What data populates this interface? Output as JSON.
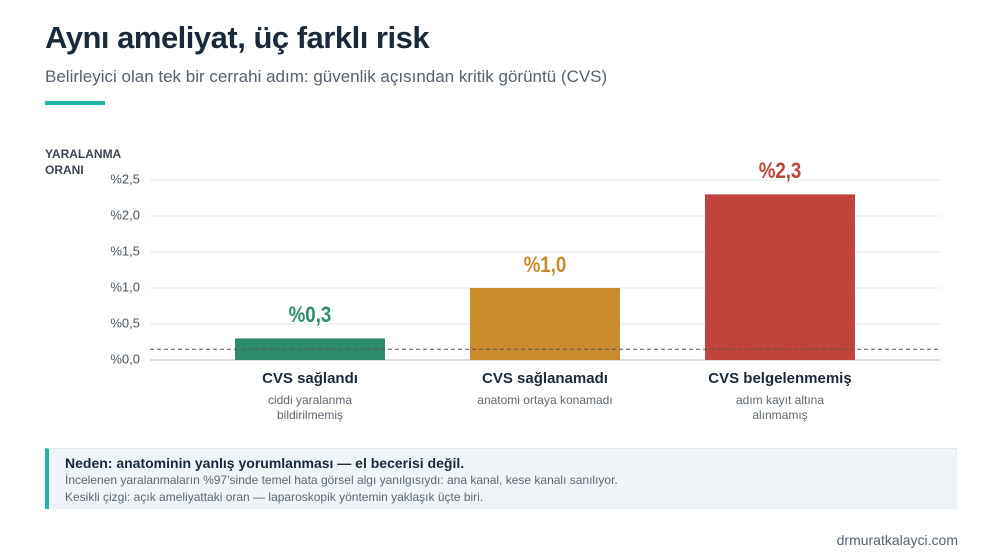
{
  "chart_data": {
    "type": "bar",
    "title": "Aynı ameliyat, üç farklı risk",
    "subtitle": "Belirleyici olan tek bir cerrahi adım: güvenlik açısından kritik görüntü (CVS)",
    "y_label": "YARALANMA ORANI",
    "categories": [
      "CVS sağlandı",
      "CVS sağlanamadı",
      "CVS belgelenmemiş"
    ],
    "descriptions": [
      "ciddi yaralanma bildirilmemiş",
      "anatomi ortaya konamadı",
      "adım kayıt altına alınmamış"
    ],
    "values": [
      0.3,
      1.0,
      2.3
    ],
    "value_labels": [
      "%0,3",
      "%1,0",
      "%2,3"
    ],
    "colors": [
      "#2e8b6e",
      "#c98a2e",
      "#c0443c"
    ],
    "ylim": [
      0,
      2.5
    ],
    "yticks": [
      {
        "value": 0,
        "label": "%0,0"
      },
      {
        "value": 0.5,
        "label": "%0,5"
      },
      {
        "value": 1,
        "label": "%1,0"
      },
      {
        "value": 1.5,
        "label": "%1,5"
      },
      {
        "value": 2,
        "label": "%2,0"
      },
      {
        "value": 2.5,
        "label": "%2,5"
      }
    ],
    "reference_line": 0.15,
    "grid": true
  },
  "note": {
    "title": "Neden: anatominin yanlış yorumlanması — el becerisi değil.",
    "lines": [
      "İncelenen yaralanmaların %97’sinde temel hata görsel algı yanılgısıydı: ana kanal, kese kanalı sanılıyor.",
      "Kesikli çizgi: açık ameliyattaki oran — laparoskopik yöntemin yaklaşık üçte biri."
    ]
  },
  "footer": "drmuratkalayci.com"
}
